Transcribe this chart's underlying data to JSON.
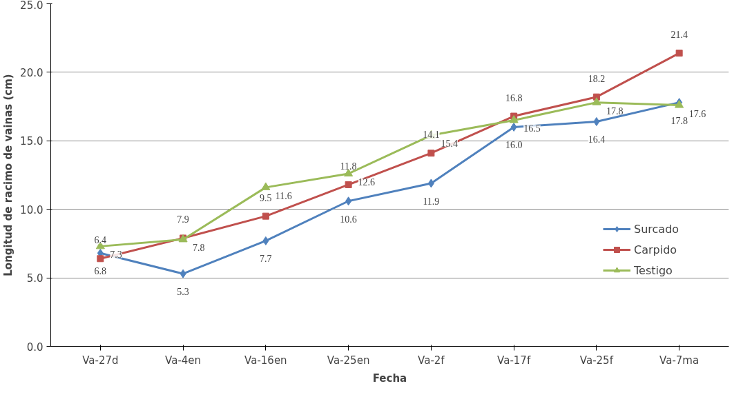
{
  "chart_data": {
    "type": "line",
    "xlabel": "Fecha",
    "ylabel": "Longitud de racimo de vainas (cm)",
    "categories": [
      "Va-27d",
      "Va-4en",
      "Va-16en",
      "Va-25en",
      "Va-2f",
      "Va-17f",
      "Va-25f",
      "Va-7ma"
    ],
    "series": [
      {
        "name": "Surcado",
        "color": "#4f81bd",
        "marker": "diamond",
        "values": [
          6.8,
          5.3,
          7.7,
          10.6,
          11.9,
          16.0,
          16.4,
          17.8
        ],
        "value_labels": [
          "6.8",
          "5.3",
          "7.7",
          "10.6",
          "11.9",
          "16.0",
          "16.4",
          "17.8"
        ]
      },
      {
        "name": "Carpido",
        "color": "#c0504d",
        "marker": "square",
        "values": [
          6.4,
          7.9,
          9.5,
          11.8,
          14.1,
          16.8,
          18.2,
          21.4
        ],
        "value_labels": [
          "6.4",
          "7.9",
          "9.5",
          "11.8",
          "14.1",
          "16.8",
          "18.2",
          "21.4"
        ]
      },
      {
        "name": "Testigo",
        "color": "#9bbb59",
        "marker": "triangle",
        "values": [
          7.3,
          7.8,
          11.6,
          12.6,
          15.4,
          16.5,
          17.8,
          17.6
        ],
        "value_labels": [
          "7.3",
          "7.8",
          "11.6",
          "12.6",
          "15.4",
          "16.5",
          "17.8",
          "17.6"
        ]
      }
    ],
    "ylim": [
      0,
      25
    ],
    "yticks": [
      {
        "value": 0,
        "label": "0.0"
      },
      {
        "value": 5,
        "label": "5.0"
      },
      {
        "value": 10,
        "label": "10.0"
      },
      {
        "value": 15,
        "label": "15.0"
      },
      {
        "value": 20,
        "label": "20.0"
      },
      {
        "value": 25,
        "label": "25.0"
      }
    ],
    "grid": "y",
    "legend": "right",
    "data_labels": true
  }
}
